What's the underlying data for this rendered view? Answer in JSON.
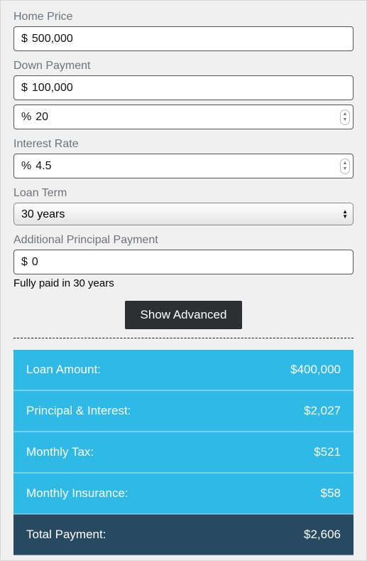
{
  "colors": {
    "panel_bg": "#f0f0f0",
    "panel_border": "#d8d8d8",
    "label_text": "#6f7378",
    "input_border": "#555555",
    "button_bg": "#2d2f33",
    "button_text": "#ffffff",
    "result_row_bg": "#2eb9e7",
    "result_total_bg": "#274a61",
    "result_text": "#ffffff"
  },
  "fields": {
    "home_price": {
      "label": "Home Price",
      "prefix": "$",
      "value": "500,000"
    },
    "down_payment": {
      "label": "Down Payment",
      "prefix": "$",
      "value": "100,000"
    },
    "down_pct": {
      "prefix": "%",
      "value": "20"
    },
    "interest_rate": {
      "label": "Interest Rate",
      "prefix": "%",
      "value": "4.5"
    },
    "loan_term": {
      "label": "Loan Term",
      "selected": "30 years"
    },
    "additional": {
      "label": "Additional Principal Payment",
      "prefix": "$",
      "value": "0"
    }
  },
  "helper_text": "Fully paid in 30 years",
  "show_advanced_label": "Show Advanced",
  "results": {
    "rows": [
      {
        "label": "Loan Amount:",
        "value": "$400,000"
      },
      {
        "label": "Principal & Interest:",
        "value": "$2,027"
      },
      {
        "label": "Monthly Tax:",
        "value": "$521"
      },
      {
        "label": "Monthly Insurance:",
        "value": "$58"
      }
    ],
    "total": {
      "label": "Total Payment:",
      "value": "$2,606"
    }
  }
}
